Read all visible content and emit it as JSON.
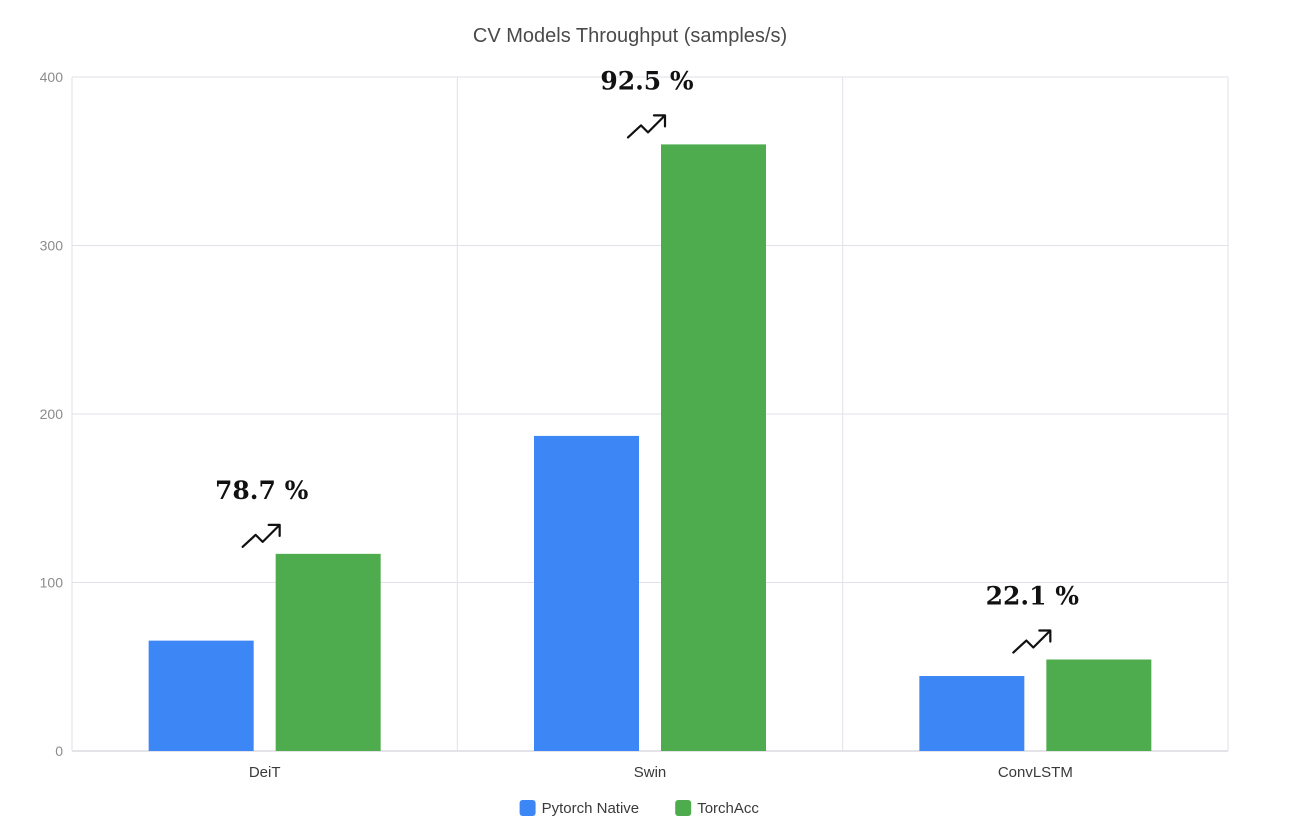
{
  "chart_data": {
    "type": "bar",
    "title": "CV Models Throughput (samples/s)",
    "categories": [
      "DeiT",
      "Swin",
      "ConvLSTM"
    ],
    "series": [
      {
        "name": "Pytorch Native",
        "color": "#3d86f5",
        "values": [
          65.5,
          187,
          44.5
        ]
      },
      {
        "name": "TorchAcc",
        "color": "#4eac4e",
        "values": [
          117,
          360,
          54.3
        ]
      }
    ],
    "ylim": [
      0,
      400
    ],
    "yticks": [
      0,
      100,
      200,
      300,
      400
    ],
    "ytick_labels": [
      "0",
      "100",
      "200",
      "300",
      "400"
    ],
    "grid": true,
    "legend_position": "bottom-center",
    "annotations": [
      {
        "category": "DeiT",
        "text": "78.7 %",
        "icon": "trending-up-arrow-icon"
      },
      {
        "category": "Swin",
        "text": "92.5 %",
        "icon": "trending-up-arrow-icon"
      },
      {
        "category": "ConvLSTM",
        "text": "22.1 %",
        "icon": "trending-up-arrow-icon"
      }
    ]
  }
}
